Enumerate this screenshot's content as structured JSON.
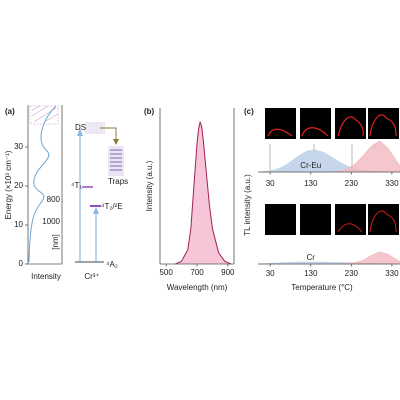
{
  "panels": {
    "a": "(a)",
    "b": "(b)",
    "c": "(c)"
  },
  "energy_diagram": {
    "ylabel": "Energy (×10³ cm⁻¹)",
    "ylim": [
      0,
      40
    ],
    "yticks": [
      0,
      10,
      20,
      30
    ],
    "nm_labels": [
      "800",
      "1000"
    ],
    "nm_unit": "[nm]",
    "xlabel_left": "Intensity",
    "ion": "Cr³⁺",
    "levels": {
      "ds": "DS",
      "t1": "⁴T₁",
      "t2e": "⁴T₂/²E",
      "a2": "⁴A₂",
      "traps": "Traps"
    }
  },
  "chart_data": [
    {
      "type": "line",
      "xlabel": "Wavelength (nm)",
      "ylabel": "Intensity (a.u.)",
      "x": [
        560,
        600,
        640,
        660,
        680,
        700,
        710,
        720,
        730,
        740,
        760,
        780,
        800,
        840,
        880,
        920
      ],
      "series": [
        {
          "color": "#a0205a",
          "fill": "#f6c6d8",
          "values": [
            0,
            0.02,
            0.1,
            0.25,
            0.55,
            0.85,
            0.95,
            1.0,
            0.97,
            0.88,
            0.65,
            0.42,
            0.25,
            0.08,
            0.02,
            0
          ]
        }
      ],
      "xlim": [
        460,
        940
      ],
      "xticks": [
        500,
        700,
        900
      ],
      "ylim": [
        0,
        1.1
      ]
    },
    {
      "type": "area",
      "ylabel": "TL intensity (a.u.)",
      "annotation": "Cr-Eu",
      "x": [
        0,
        20,
        40,
        60,
        80,
        100,
        120,
        140,
        160,
        180,
        200,
        220,
        240,
        260,
        280,
        300,
        320,
        340,
        350
      ],
      "series": [
        {
          "color": "#b9cde6",
          "values": [
            0,
            0.02,
            0.05,
            0.12,
            0.25,
            0.4,
            0.52,
            0.55,
            0.5,
            0.38,
            0.25,
            0.15,
            0.08,
            0.04,
            0.02,
            0.01,
            0,
            0,
            0
          ]
        },
        {
          "color": "#f3b8bf",
          "values": [
            0,
            0,
            0,
            0,
            0,
            0,
            0,
            0,
            0,
            0,
            0.02,
            0.08,
            0.2,
            0.42,
            0.65,
            0.78,
            0.6,
            0.3,
            0.15
          ]
        }
      ],
      "xlim": [
        0,
        350
      ],
      "xticks": [
        30,
        130,
        230,
        330
      ],
      "ylim": [
        0,
        1
      ]
    },
    {
      "type": "area",
      "xlabel": "Temperature (°C)",
      "annotation": "Cr",
      "x": [
        0,
        20,
        40,
        60,
        80,
        100,
        120,
        140,
        160,
        180,
        200,
        220,
        240,
        260,
        280,
        300,
        320,
        340,
        350
      ],
      "series": [
        {
          "color": "#b9cde6",
          "values": [
            0,
            0.01,
            0.02,
            0.03,
            0.04,
            0.05,
            0.05,
            0.05,
            0.05,
            0.04,
            0.04,
            0.03,
            0.03,
            0.02,
            0.02,
            0.01,
            0,
            0,
            0
          ]
        },
        {
          "color": "#f3b8bf",
          "values": [
            0,
            0,
            0,
            0,
            0,
            0,
            0,
            0,
            0,
            0,
            0,
            0.01,
            0.04,
            0.1,
            0.22,
            0.3,
            0.25,
            0.12,
            0.06
          ]
        }
      ],
      "xlim": [
        0,
        350
      ],
      "xticks": [
        30,
        130,
        230,
        330
      ],
      "ylim": [
        0,
        1
      ]
    }
  ]
}
